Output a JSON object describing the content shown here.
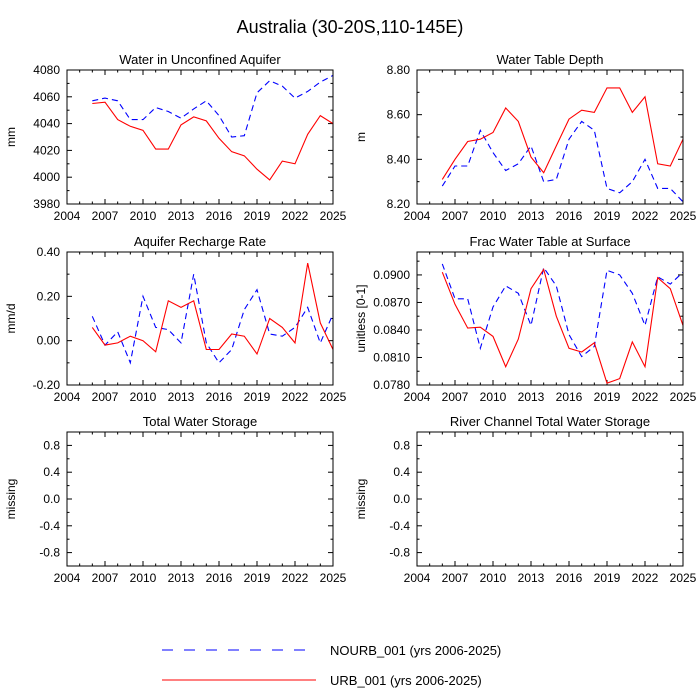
{
  "figure": {
    "title": "Australia (30-20S,110-145E)"
  },
  "legend": {
    "placement": "bottom-center",
    "entries": [
      {
        "label": "NOURB_001 (yrs 2006-2025)",
        "color": "#0000ff",
        "dash": "dashed"
      },
      {
        "label": "URB_001 (yrs 2006-2025)",
        "color": "#ff0000",
        "dash": "solid"
      }
    ]
  },
  "chart_data": [
    {
      "type": "line",
      "title": "Water in Unconfined Aquifer",
      "xlabel": "",
      "ylabel": "mm",
      "xlim": [
        2004,
        2025
      ],
      "ylim": [
        3980,
        4080
      ],
      "xticks": [
        2004,
        2007,
        2010,
        2013,
        2016,
        2019,
        2022,
        2025
      ],
      "yticks": [
        3980,
        4000,
        4020,
        4040,
        4060,
        4080
      ],
      "ytick_labels": [
        "3980",
        "4000",
        "4020",
        "4040",
        "4060",
        "4080"
      ],
      "x": [
        2006,
        2007,
        2008,
        2009,
        2010,
        2011,
        2012,
        2013,
        2014,
        2015,
        2016,
        2017,
        2018,
        2019,
        2020,
        2021,
        2022,
        2023,
        2024,
        2025
      ],
      "series": [
        {
          "name": "NOURB_001",
          "color": "#0000ff",
          "dash": "dashed",
          "values": [
            4057,
            4059,
            4057,
            4043,
            4043,
            4052,
            4049,
            4044,
            4051,
            4057,
            4046,
            4030,
            4031,
            4063,
            4072,
            4068,
            4059,
            4064,
            4071,
            4076
          ]
        },
        {
          "name": "URB_001",
          "color": "#ff0000",
          "dash": "solid",
          "values": [
            4055,
            4056,
            4043,
            4038,
            4035,
            4021,
            4021,
            4039,
            4045,
            4042,
            4029,
            4019,
            4016,
            4006,
            3998,
            4012,
            4010,
            4032,
            4046,
            4040
          ]
        }
      ]
    },
    {
      "type": "line",
      "title": "Water Table Depth",
      "xlabel": "",
      "ylabel": "m",
      "xlim": [
        2004,
        2025
      ],
      "ylim": [
        8.2,
        8.8
      ],
      "xticks": [
        2004,
        2007,
        2010,
        2013,
        2016,
        2019,
        2022,
        2025
      ],
      "yticks": [
        8.2,
        8.4,
        8.6,
        8.8
      ],
      "ytick_labels": [
        "8.20",
        "8.40",
        "8.60",
        "8.80"
      ],
      "x": [
        2006,
        2007,
        2008,
        2009,
        2010,
        2011,
        2012,
        2013,
        2014,
        2015,
        2016,
        2017,
        2018,
        2019,
        2020,
        2021,
        2022,
        2023,
        2024,
        2025
      ],
      "series": [
        {
          "name": "NOURB_001",
          "color": "#0000ff",
          "dash": "dashed",
          "values": [
            8.28,
            8.37,
            8.37,
            8.53,
            8.43,
            8.35,
            8.38,
            8.46,
            8.3,
            8.31,
            8.49,
            8.57,
            8.53,
            8.27,
            8.25,
            8.3,
            8.4,
            8.27,
            8.27,
            8.21
          ]
        },
        {
          "name": "URB_001",
          "color": "#ff0000",
          "dash": "solid",
          "values": [
            8.31,
            8.4,
            8.48,
            8.49,
            8.52,
            8.63,
            8.57,
            8.41,
            8.34,
            8.46,
            8.58,
            8.62,
            8.61,
            8.72,
            8.72,
            8.61,
            8.68,
            8.38,
            8.37,
            8.49
          ]
        }
      ]
    },
    {
      "type": "line",
      "title": "Aquifer Recharge Rate",
      "xlabel": "",
      "ylabel": "mm/d",
      "xlim": [
        2004,
        2025
      ],
      "ylim": [
        -0.2,
        0.4
      ],
      "xticks": [
        2004,
        2007,
        2010,
        2013,
        2016,
        2019,
        2022,
        2025
      ],
      "yticks": [
        -0.2,
        0.0,
        0.2,
        0.4
      ],
      "ytick_labels": [
        "-0.20",
        "0.00",
        "0.20",
        "0.40"
      ],
      "x": [
        2006,
        2007,
        2008,
        2009,
        2010,
        2011,
        2012,
        2013,
        2014,
        2015,
        2016,
        2017,
        2018,
        2019,
        2020,
        2021,
        2022,
        2023,
        2024,
        2025
      ],
      "series": [
        {
          "name": "NOURB_001",
          "color": "#0000ff",
          "dash": "dashed",
          "values": [
            0.11,
            -0.02,
            0.04,
            -0.1,
            0.2,
            0.06,
            0.05,
            -0.01,
            0.3,
            -0.01,
            -0.1,
            -0.04,
            0.14,
            0.23,
            0.03,
            0.02,
            0.06,
            0.15,
            -0.01,
            0.12
          ]
        },
        {
          "name": "URB_001",
          "color": "#ff0000",
          "dash": "solid",
          "values": [
            0.06,
            -0.02,
            -0.01,
            0.02,
            0.0,
            -0.05,
            0.18,
            0.15,
            0.18,
            -0.04,
            -0.04,
            0.03,
            0.02,
            -0.06,
            0.1,
            0.06,
            -0.01,
            0.35,
            0.08,
            -0.04
          ]
        }
      ]
    },
    {
      "type": "line",
      "title": "Frac Water Table at Surface",
      "xlabel": "",
      "ylabel": "unitless [0-1]",
      "xlim": [
        2004,
        2025
      ],
      "ylim": [
        0.078,
        0.0925
      ],
      "xticks": [
        2004,
        2007,
        2010,
        2013,
        2016,
        2019,
        2022,
        2025
      ],
      "yticks": [
        0.078,
        0.081,
        0.084,
        0.087,
        0.09
      ],
      "ytick_labels": [
        "0.0780",
        "0.0810",
        "0.0840",
        "0.0870",
        "0.0900"
      ],
      "x": [
        2006,
        2007,
        2008,
        2009,
        2010,
        2011,
        2012,
        2013,
        2014,
        2015,
        2016,
        2017,
        2018,
        2019,
        2020,
        2021,
        2022,
        2023,
        2024,
        2025
      ],
      "series": [
        {
          "name": "NOURB_001",
          "color": "#0000ff",
          "dash": "dashed",
          "values": [
            0.0912,
            0.0874,
            0.0874,
            0.082,
            0.0865,
            0.0888,
            0.088,
            0.0845,
            0.0908,
            0.0888,
            0.0835,
            0.0811,
            0.0822,
            0.0905,
            0.09,
            0.088,
            0.0845,
            0.0898,
            0.089,
            0.0903
          ]
        },
        {
          "name": "URB_001",
          "color": "#ff0000",
          "dash": "solid",
          "values": [
            0.0903,
            0.0868,
            0.0842,
            0.0843,
            0.0833,
            0.08,
            0.083,
            0.0885,
            0.0906,
            0.0855,
            0.082,
            0.0816,
            0.0826,
            0.0782,
            0.0787,
            0.0827,
            0.08,
            0.0897,
            0.0885,
            0.0845
          ]
        }
      ]
    },
    {
      "type": "line",
      "title": "Total Water Storage",
      "xlabel": "",
      "ylabel": "missing",
      "xlim": [
        2004,
        2025
      ],
      "ylim": [
        -1,
        1
      ],
      "xticks": [
        2004,
        2007,
        2010,
        2013,
        2016,
        2019,
        2022,
        2025
      ],
      "yticks": [
        -0.8,
        -0.4,
        0.0,
        0.4,
        0.8
      ],
      "ytick_labels": [
        "-0.8",
        "-0.4",
        "0.0",
        "0.4",
        "0.8"
      ],
      "x": [],
      "series": []
    },
    {
      "type": "line",
      "title": "River Channel Total Water Storage",
      "xlabel": "",
      "ylabel": "missing",
      "xlim": [
        2004,
        2025
      ],
      "ylim": [
        -1,
        1
      ],
      "xticks": [
        2004,
        2007,
        2010,
        2013,
        2016,
        2019,
        2022,
        2025
      ],
      "yticks": [
        -0.8,
        -0.4,
        0.0,
        0.4,
        0.8
      ],
      "ytick_labels": [
        "-0.8",
        "-0.4",
        "0.0",
        "0.4",
        "0.8"
      ],
      "x": [],
      "series": []
    }
  ]
}
